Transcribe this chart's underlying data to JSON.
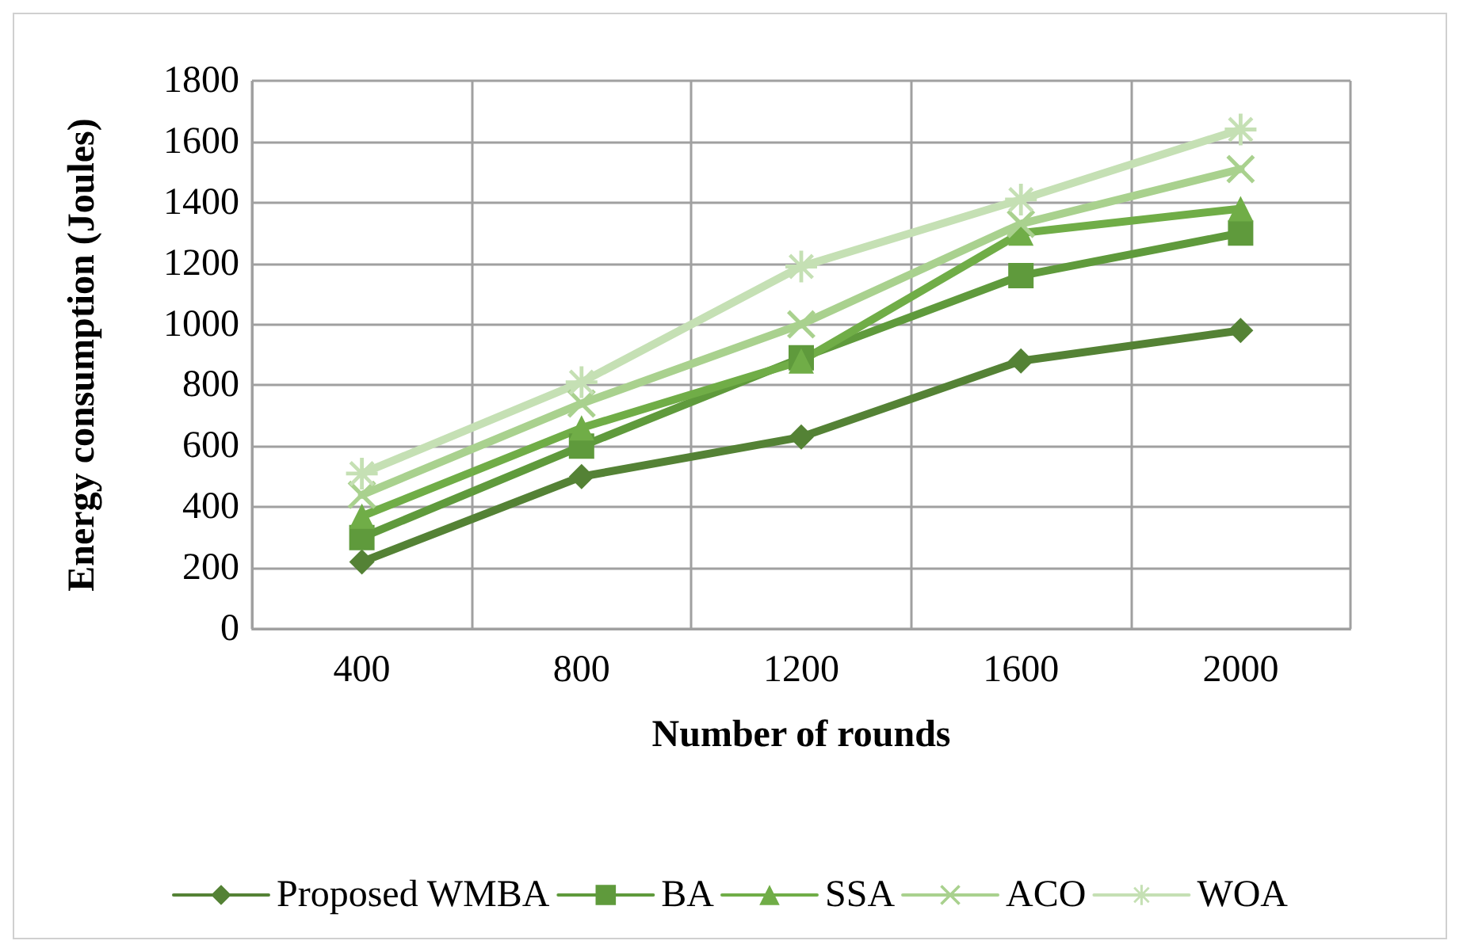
{
  "chart_data": {
    "type": "line",
    "xlabel": "Number of rounds",
    "ylabel": "Energy consumption (Joules)",
    "categories": [
      "400",
      "800",
      "1200",
      "1600",
      "2000"
    ],
    "series": [
      {
        "name": "Proposed WMBA",
        "color": "#548235",
        "marker": "diamond",
        "values": [
          220,
          500,
          630,
          880,
          980
        ]
      },
      {
        "name": "BA",
        "color": "#5f9a3c",
        "marker": "square",
        "values": [
          300,
          600,
          890,
          1160,
          1300
        ]
      },
      {
        "name": "SSA",
        "color": "#70ad47",
        "marker": "triangle",
        "values": [
          370,
          660,
          880,
          1300,
          1380
        ]
      },
      {
        "name": "ACO",
        "color": "#a9d18e",
        "marker": "cross",
        "values": [
          440,
          740,
          1000,
          1330,
          1510
        ]
      },
      {
        "name": "WOA",
        "color": "#c5e0b4",
        "marker": "star",
        "values": [
          510,
          810,
          1190,
          1410,
          1640
        ]
      }
    ],
    "ylim": [
      0,
      1800
    ],
    "yticks": [
      0,
      200,
      400,
      600,
      800,
      1000,
      1200,
      1400,
      1600,
      1800
    ],
    "grid": true,
    "legend": "bottom",
    "line_style": "solid"
  }
}
